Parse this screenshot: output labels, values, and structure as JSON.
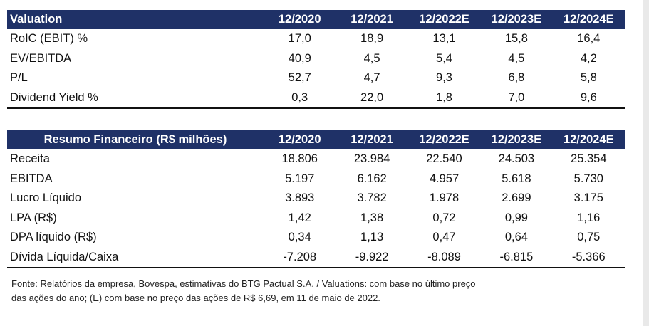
{
  "valuation": {
    "title": "Valuation",
    "years": [
      "12/2020",
      "12/2021",
      "12/2022E",
      "12/2023E",
      "12/2024E"
    ],
    "rows": [
      {
        "label": "RoIC (EBIT) %",
        "values": [
          "17,0",
          "18,9",
          "13,1",
          "15,8",
          "16,4"
        ]
      },
      {
        "label": "EV/EBITDA",
        "values": [
          "40,9",
          "4,5",
          "5,4",
          "4,5",
          "4,2"
        ]
      },
      {
        "label": "P/L",
        "values": [
          "52,7",
          "4,7",
          "9,3",
          "6,8",
          "5,8"
        ]
      },
      {
        "label": "Dividend Yield %",
        "values": [
          "0,3",
          "22,0",
          "1,8",
          "7,0",
          "9,6"
        ]
      }
    ]
  },
  "resumo": {
    "title": "Resumo Financeiro (R$ milhões)",
    "years": [
      "12/2020",
      "12/2021",
      "12/2022E",
      "12/2023E",
      "12/2024E"
    ],
    "rows": [
      {
        "label": "Receita",
        "values": [
          "18.806",
          "23.984",
          "22.540",
          "24.503",
          "25.354"
        ]
      },
      {
        "label": "EBITDA",
        "values": [
          "5.197",
          "6.162",
          "4.957",
          "5.618",
          "5.730"
        ]
      },
      {
        "label": "Lucro Líquido",
        "values": [
          "3.893",
          "3.782",
          "1.978",
          "2.699",
          "3.175"
        ]
      },
      {
        "label": "LPA (R$)",
        "values": [
          "1,42",
          "1,38",
          "0,72",
          "0,99",
          "1,16"
        ]
      },
      {
        "label": "DPA líquido (R$)",
        "values": [
          "0,34",
          "1,13",
          "0,47",
          "0,64",
          "0,75"
        ]
      },
      {
        "label": "Dívida Líquida/Caixa",
        "values": [
          "-7.208",
          "-9.922",
          "-8.089",
          "-6.815",
          "-5.366"
        ]
      }
    ]
  },
  "footnote": {
    "line1": "Fonte: Relatórios da empresa,  Bovespa, estimativas do BTG Pactual S.A. / Valuations: com base no último preço",
    "line2": "das ações do ano; (E) com base no preço das ações de R$ 6,69,  em 11 de maio de 2022."
  }
}
